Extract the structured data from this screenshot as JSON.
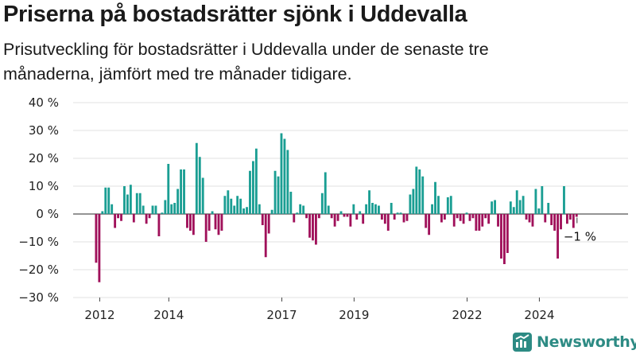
{
  "header": {
    "title": "Priserna på bostadsrätter sjönk i Uddevalla",
    "subtitle": "Prisutveckling för bostadsrätter i Uddevalla under de senaste tre månaderna, jämfört med tre månader tidigare."
  },
  "brand": {
    "name": "Newsworthy",
    "color": "#2d8b84"
  },
  "colors": {
    "positive": "#1a9e93",
    "negative": "#a0105a"
  },
  "chart_data": {
    "type": "bar",
    "title": "Priserna på bostadsrätter sjönk i Uddevalla",
    "subtitle": "Prisutveckling för bostadsrätter i Uddevalla under de senaste tre månaderna, jämfört med tre månader tidigare.",
    "x_unit": "month",
    "x_start": "2012-01",
    "ylim": [
      -30,
      40
    ],
    "yticks": [
      -30,
      -20,
      -10,
      0,
      10,
      20,
      30,
      40
    ],
    "ytick_labels": [
      "−30 %",
      "−20 %",
      "−10 %",
      "0 %",
      "10 %",
      "20 %",
      "30 %",
      "40 %"
    ],
    "xticks": [
      {
        "label": "2012",
        "date": "2012-02"
      },
      {
        "label": "2014",
        "date": "2013-12"
      },
      {
        "label": "2017",
        "date": "2016-12"
      },
      {
        "label": "2019",
        "date": "2018-11"
      },
      {
        "label": "2022",
        "date": "2021-11"
      },
      {
        "label": "2024",
        "date": "2023-10"
      }
    ],
    "grid": true,
    "last_label": "−1 %",
    "values": [
      -17.5,
      -24.5,
      1,
      9.5,
      9.5,
      3.5,
      -5,
      -1.5,
      -2.5,
      10,
      7,
      10.5,
      -3,
      7.5,
      7.5,
      3,
      -3.5,
      -1.5,
      3,
      3,
      -8,
      0.5,
      5,
      18,
      3.5,
      4,
      9,
      16,
      16,
      -5,
      -6,
      -7.5,
      25.5,
      20.5,
      13,
      -10,
      -6,
      1,
      -5.5,
      -7.5,
      -6,
      6.5,
      8.5,
      5.5,
      3,
      6.5,
      5.5,
      2,
      2.5,
      15.5,
      19,
      23.5,
      3.5,
      -4,
      -15.5,
      -7,
      1.5,
      15.5,
      13.5,
      29,
      27,
      23,
      8,
      -3,
      0.5,
      3.5,
      3,
      -1.5,
      -8.5,
      -9.5,
      -11,
      -1.5,
      7.5,
      15,
      3,
      -1.5,
      -4.5,
      -2.5,
      1,
      -1,
      -1,
      -4.5,
      3.5,
      -2,
      1,
      -3.5,
      3.5,
      8.5,
      4,
      3.5,
      3,
      -2,
      -3.5,
      -6,
      4,
      -2,
      0.5,
      0.5,
      -3,
      -2.5,
      7,
      9,
      17,
      16,
      13.5,
      -5,
      -7.5,
      3.5,
      11.5,
      6.5,
      -3,
      -2,
      6,
      6.5,
      -4.5,
      -1.5,
      -2.5,
      -3.5,
      0.5,
      -2.5,
      -1.5,
      -6,
      -6,
      -4.5,
      -1.5,
      -3.5,
      4.5,
      5,
      -4.5,
      -16,
      -18,
      -14,
      4.5,
      2.5,
      8.5,
      5,
      6.5,
      -2,
      -3,
      -4.5,
      9,
      2,
      10,
      -3,
      4,
      -4,
      -6,
      -16,
      -5.5,
      10,
      -3.5,
      -2,
      -5,
      -1
    ]
  }
}
